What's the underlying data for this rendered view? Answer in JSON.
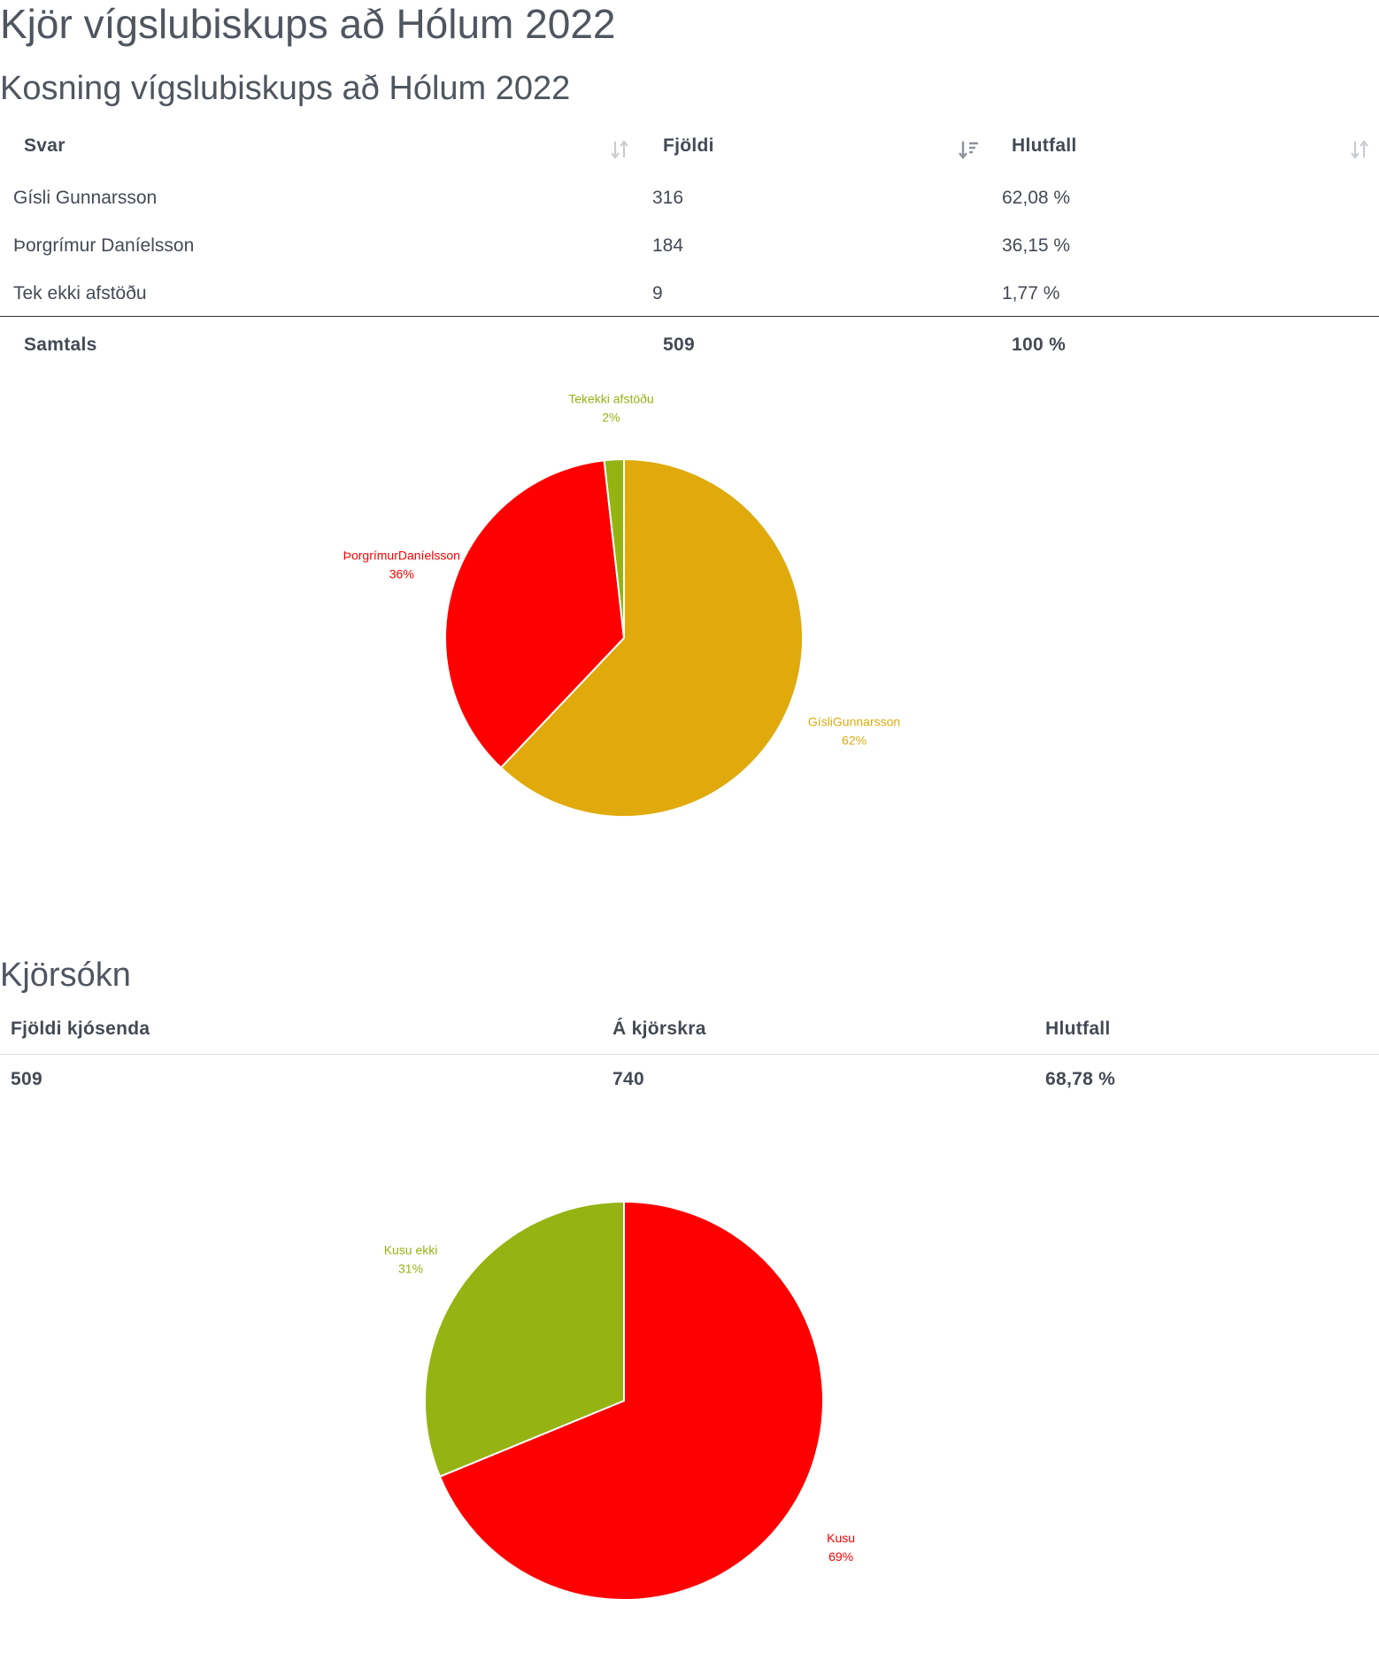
{
  "page": {
    "title": "Kjör vígslubiskups að Hólum 2022"
  },
  "results": {
    "title": "Kosning vígslubiskups að Hólum 2022",
    "headers": {
      "answer": "Svar",
      "count": "Fjöldi",
      "share": "Hlutfall"
    },
    "rows": [
      {
        "answer": "Gísli Gunnarsson",
        "count": "316",
        "share": "62,08 %"
      },
      {
        "answer": "Þorgrímur Daníelsson",
        "count": "184",
        "share": "36,15 %"
      },
      {
        "answer": "Tek ekki afstöðu",
        "count": "9",
        "share": "1,77 %"
      }
    ],
    "total": {
      "label": "Samtals",
      "count": "509",
      "share": "100 %"
    },
    "sort_icons": {
      "answer": "sort-neutral-icon",
      "count": "sort-descending-icon",
      "share": "sort-neutral-icon"
    }
  },
  "turnout": {
    "title": "Kjörsókn",
    "headers": {
      "voters": "Fjöldi kjósenda",
      "registered": "Á kjörskra",
      "share": "Hlutfall"
    },
    "row": {
      "voters": "509",
      "registered": "740",
      "share": "68,78 %"
    }
  },
  "chart_data": [
    {
      "type": "pie",
      "title": "",
      "categories": [
        "Gísli Gunnarsson",
        "Þorgrímur Daníelsson",
        "Tek ekki afstöðu"
      ],
      "labels": [
        "GísliGunnarsson",
        "ÞorgrímurDaníelsson",
        "Tekekki afstöðu"
      ],
      "values": [
        316,
        184,
        9
      ],
      "percent_labels": [
        "62%",
        "36%",
        "2%"
      ],
      "colors": [
        "#e0aa0c",
        "#ff0000",
        "#95b313"
      ],
      "legend": "none"
    },
    {
      "type": "pie",
      "title": "",
      "categories": [
        "Kusu",
        "Kusu ekki"
      ],
      "labels": [
        "Kusu",
        "Kusu ekki"
      ],
      "values": [
        509,
        231
      ],
      "percent_labels": [
        "69%",
        "31%"
      ],
      "colors": [
        "#ff0000",
        "#95b313"
      ],
      "legend": "none"
    }
  ]
}
